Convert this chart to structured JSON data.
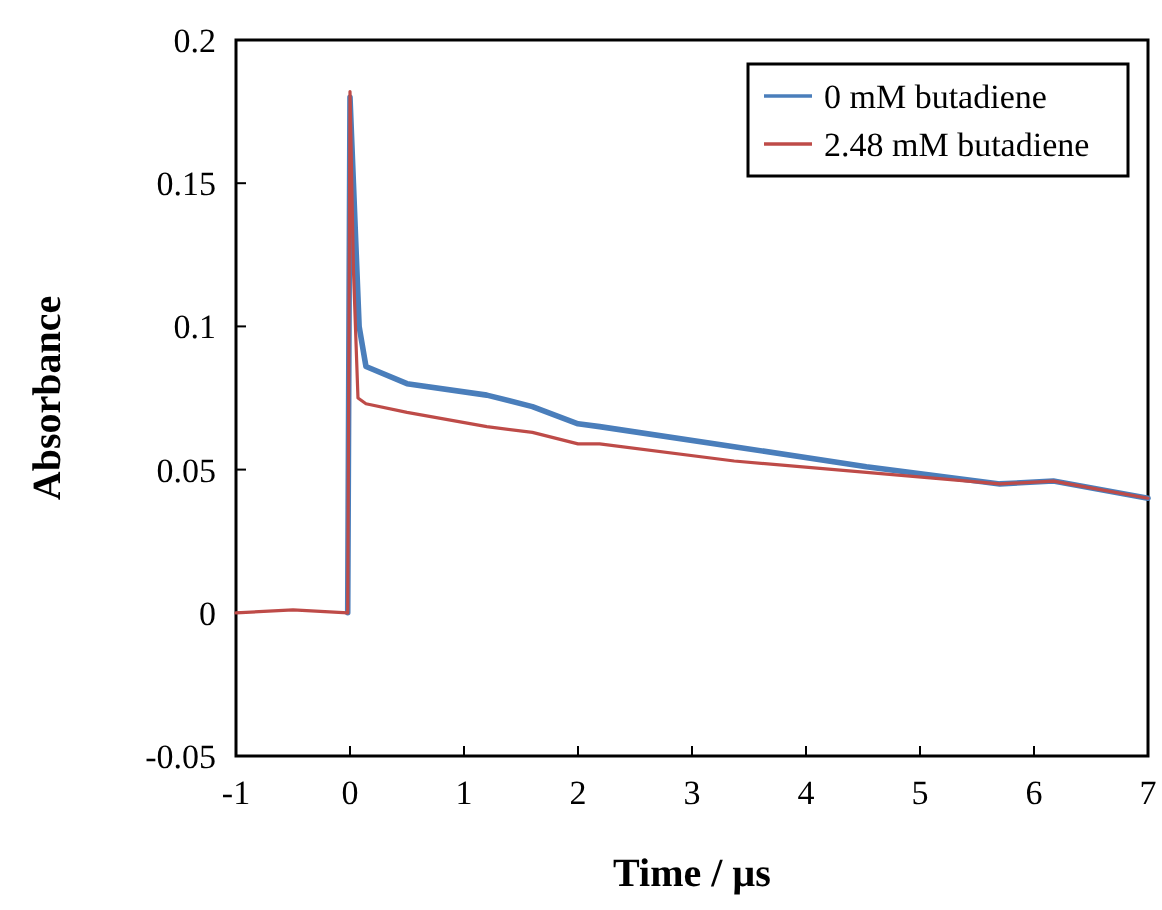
{
  "chart_data": {
    "type": "line",
    "xlabel": "Time / µs",
    "ylabel": "Absorbance",
    "xlim": [
      -1,
      7
    ],
    "xticks": [
      -1,
      0,
      1,
      2,
      3,
      4,
      5,
      6,
      7
    ],
    "ylim": [
      -0.05,
      0.2
    ],
    "yticks": [
      -0.05,
      0,
      0.05,
      0.1,
      0.15,
      0.2
    ],
    "grid": false,
    "legend": "top right",
    "series": [
      {
        "name": "0 mM butadiene",
        "color": "#4a7ebb",
        "x": [
          -0.02,
          0,
          0.03,
          0.08,
          0.14,
          0.5,
          1.2,
          1.6,
          2,
          2.19,
          3.37,
          4.53,
          5.7,
          6.17,
          7
        ],
        "values": [
          0,
          0.18,
          0.15,
          0.1,
          0.086,
          0.08,
          0.076,
          0.072,
          0.066,
          0.065,
          0.058,
          0.051,
          0.045,
          0.046,
          0.04
        ]
      },
      {
        "name": "2.48 mM butadiene",
        "color": "#be4b48",
        "x": [
          -1,
          -0.5,
          -0.02,
          0,
          0.03,
          0.07,
          0.14,
          0.5,
          1.2,
          1.6,
          2,
          2.19,
          3.37,
          4.53,
          5.7,
          6.17,
          7
        ],
        "values": [
          0,
          0.001,
          0,
          0.182,
          0.12,
          0.075,
          0.073,
          0.07,
          0.065,
          0.063,
          0.059,
          0.059,
          0.053,
          0.049,
          0.045,
          0.046,
          0.04
        ]
      }
    ]
  }
}
